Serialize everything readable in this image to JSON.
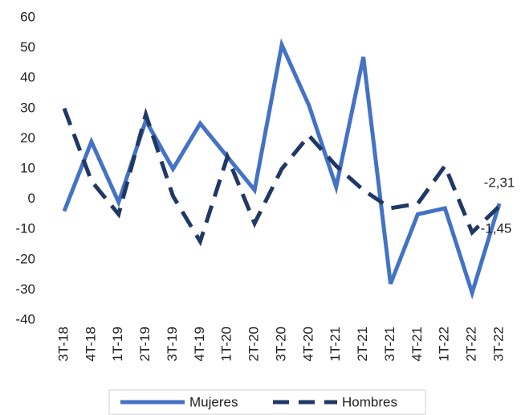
{
  "chart_data": {
    "type": "line",
    "categories": [
      "3T-18",
      "4T-18",
      "1T-19",
      "2T-19",
      "3T-19",
      "4T-19",
      "1T-20",
      "2T-20",
      "3T-20",
      "4T-20",
      "1T-21",
      "2T-21",
      "3T-21",
      "4T-21",
      "1T-22",
      "2T-22",
      "3T-22"
    ],
    "series": [
      {
        "name": "Mujeres",
        "color": "#4472c4",
        "dash": false,
        "values": [
          -4,
          19,
          -1,
          26,
          10,
          25,
          14,
          3,
          51,
          31,
          4,
          47,
          -28,
          -5,
          -3,
          -31,
          -1.45
        ],
        "value_labels": [
          null,
          null,
          null,
          null,
          null,
          null,
          null,
          null,
          null,
          null,
          null,
          null,
          null,
          null,
          null,
          null,
          "-1,45"
        ]
      },
      {
        "name": "Hombres",
        "color": "#203864",
        "dash": true,
        "values": [
          30,
          6,
          -5,
          28,
          1,
          -14,
          14,
          -8,
          10,
          21,
          11,
          3,
          -3,
          -1.5,
          11,
          -11,
          -2.31
        ],
        "value_labels": [
          null,
          null,
          null,
          null,
          null,
          null,
          null,
          null,
          null,
          null,
          null,
          null,
          null,
          null,
          null,
          null,
          "-2,31"
        ]
      }
    ],
    "ylim": [
      -40,
      60
    ],
    "yticks": [
      -40,
      -30,
      -20,
      -10,
      0,
      10,
      20,
      30,
      40,
      50,
      60
    ],
    "grid": false
  }
}
